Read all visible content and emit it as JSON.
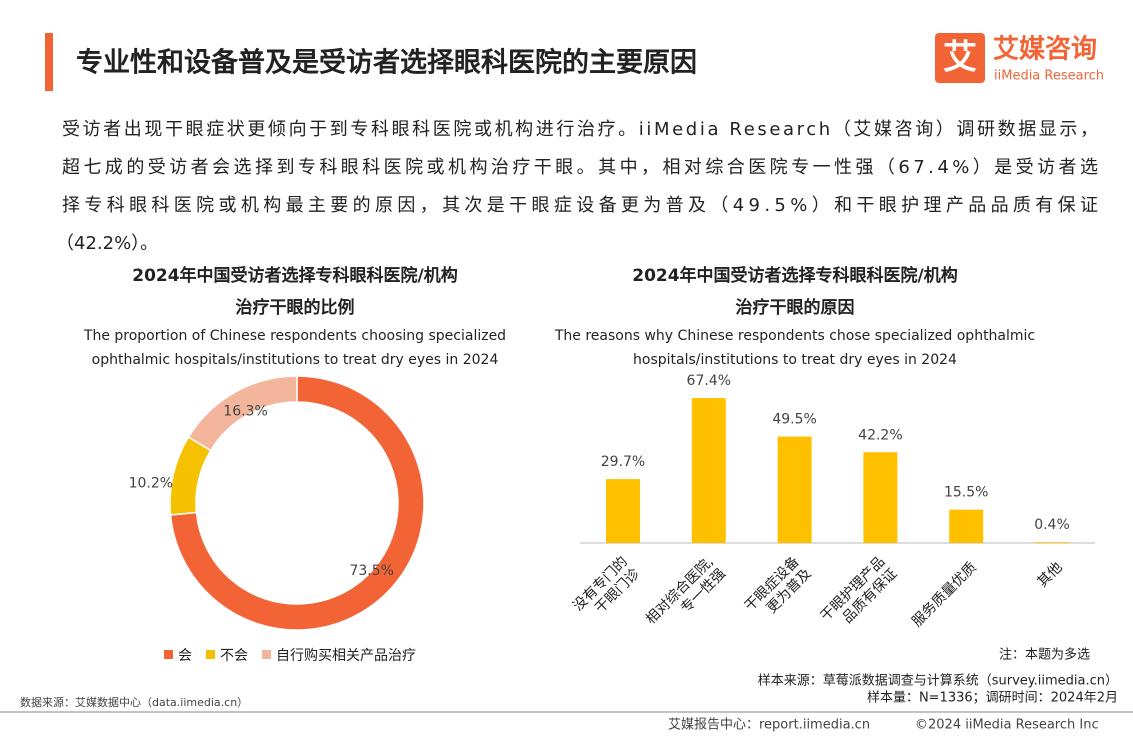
{
  "header": {
    "title": "专业性和设备普及是受访者选择眼科医院的主要原因",
    "logo_mark": "艾",
    "logo_name": "艾媒咨询",
    "logo_sub": "iiMedia Research"
  },
  "paragraph": [
    "受访者出现干眼症状更倾向于到专科眼科医院或机构进行治疗。iiMedia Research（艾媒咨询）调研数据显示，",
    "超七成的受访者会选择到专科眼科医院或机构治疗干眼。其中，相对综合医院专一性强（67.4%）是受访者选",
    "择专科眼科医院或机构最主要的原因，其次是干眼症设备更为普及（49.5%）和干眼护理产品品质有保证",
    "（42.2%）。"
  ],
  "chart_data": [
    {
      "type": "pie",
      "title": [
        "2024年中国受访者选择专科眼科医院/机构",
        "治疗干眼的比例"
      ],
      "subtitle": [
        "The proportion of Chinese respondents choosing specialized",
        "ophthalmic hospitals/institutions to treat dry eyes in 2024"
      ],
      "categories": [
        "会",
        "不会",
        "自行购买相关产品治疗"
      ],
      "values": [
        73.5,
        10.2,
        16.3
      ],
      "value_labels": [
        "73.5%",
        "10.2%",
        "16.3%"
      ],
      "colors": [
        "#f26436",
        "#f5c100",
        "#f3b59c"
      ],
      "legend": "bottom"
    },
    {
      "type": "bar",
      "title": [
        "2024年中国受访者选择专科眼科医院/机构",
        "治疗干眼的原因"
      ],
      "subtitle": [
        "The reasons why Chinese respondents chose specialized ophthalmic",
        "hospitals/institutions to treat dry eyes in 2024"
      ],
      "categories": [
        "没有专门的\n干眼门诊",
        "相对综合医院,\n专一性强",
        "干眼症设备\n更为普及",
        "干眼护理产品\n品质有保证",
        "服务质量优质",
        "其他"
      ],
      "values": [
        29.7,
        67.4,
        49.5,
        42.2,
        15.5,
        0.4
      ],
      "value_labels": [
        "29.7%",
        "67.4%",
        "49.5%",
        "42.2%",
        "15.5%",
        "0.4%"
      ],
      "color": "#ffc000"
    }
  ],
  "notes": {
    "multi": "注：本题为多选",
    "sample_source": "样本来源：草莓派数据调查与计算系统（survey.iimedia.cn）",
    "sample_size": "样本量：N=1336；调研时间：2024年2月",
    "data_source": "数据来源：艾媒数据中心（data.iimedia.cn）"
  },
  "footer": {
    "report": "艾媒报告中心：report.iimedia.cn",
    "copyright": "©2024  iiMedia Research  Inc"
  }
}
